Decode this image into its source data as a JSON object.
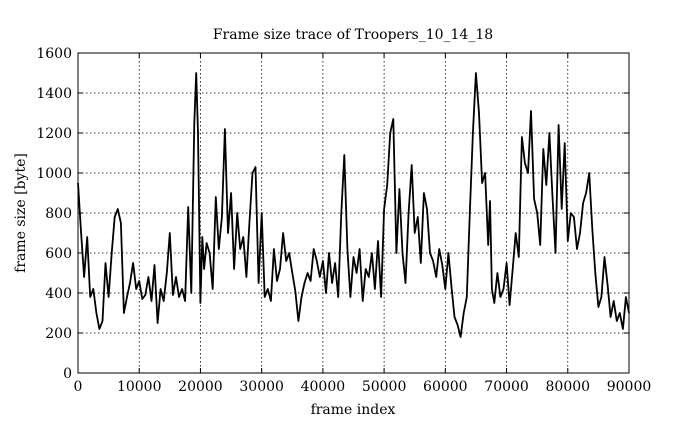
{
  "chart_data": {
    "type": "line",
    "title": "Frame size trace of Troopers_10_14_18",
    "xlabel": "frame index",
    "ylabel": "frame size [byte]",
    "xlim": [
      0,
      90000
    ],
    "ylim": [
      0,
      1600
    ],
    "x_ticks": [
      0,
      10000,
      20000,
      30000,
      40000,
      50000,
      60000,
      70000,
      80000,
      90000
    ],
    "y_ticks": [
      0,
      200,
      400,
      600,
      800,
      1000,
      1200,
      1400,
      1600
    ],
    "grid": true,
    "grid_style": "dotted",
    "line_color": "#000000",
    "series": [
      {
        "x": [
          0,
          500,
          1000,
          1500,
          2000,
          2500,
          3000,
          3500,
          4000,
          4500,
          5000,
          5500,
          6000,
          6500,
          7000,
          7500,
          8000,
          8500,
          9000,
          9500,
          10000,
          10500,
          11000,
          11500,
          12000,
          12500,
          13000,
          13500,
          14000,
          14500,
          15000,
          15500,
          16000,
          16500,
          17000,
          17500,
          18000,
          18500,
          19000,
          19300,
          19600,
          20000,
          20300,
          20600,
          21000,
          21500,
          22000,
          22500,
          23000,
          23500,
          24000,
          24500,
          25000,
          25500,
          26000,
          26500,
          27000,
          27500,
          28000,
          28500,
          29000,
          29500,
          30000,
          30500,
          31000,
          31500,
          32000,
          32500,
          33000,
          33500,
          34000,
          34500,
          35000,
          35500,
          36000,
          36500,
          37000,
          37500,
          38000,
          38500,
          39000,
          39500,
          40000,
          40500,
          41000,
          41500,
          42000,
          42500,
          43000,
          43500,
          44000,
          44500,
          45000,
          45500,
          46000,
          46500,
          47000,
          47500,
          48000,
          48500,
          49000,
          49500,
          50000,
          50500,
          51000,
          51500,
          52000,
          52500,
          53000,
          53500,
          54000,
          54500,
          55000,
          55500,
          56000,
          56500,
          57000,
          57500,
          58000,
          58500,
          59000,
          59500,
          60000,
          60500,
          61000,
          61500,
          62000,
          62500,
          63000,
          63500,
          64000,
          64500,
          65000,
          65500,
          66000,
          66500,
          67000,
          67300,
          67600,
          68000,
          68500,
          69000,
          69500,
          70000,
          70500,
          71000,
          71500,
          72000,
          72500,
          73000,
          73500,
          74000,
          74500,
          75000,
          75500,
          76000,
          76500,
          77000,
          77500,
          78000,
          78500,
          79000,
          79500,
          80000,
          80500,
          81000,
          81500,
          82000,
          82500,
          83000,
          83500,
          84000,
          84500,
          85000,
          85500,
          86000,
          86500,
          87000,
          87500,
          88000,
          88500,
          89000,
          89500,
          90000
        ],
        "values": [
          950,
          700,
          480,
          680,
          380,
          420,
          300,
          220,
          260,
          550,
          380,
          600,
          780,
          820,
          750,
          300,
          380,
          450,
          550,
          420,
          460,
          370,
          390,
          480,
          360,
          540,
          250,
          420,
          360,
          500,
          700,
          390,
          480,
          380,
          420,
          360,
          830,
          400,
          1250,
          1500,
          1200,
          350,
          680,
          520,
          650,
          600,
          420,
          880,
          620,
          780,
          1220,
          700,
          900,
          520,
          800,
          620,
          680,
          480,
          750,
          1000,
          1030,
          450,
          800,
          380,
          420,
          360,
          620,
          460,
          520,
          700,
          560,
          600,
          500,
          410,
          260,
          380,
          450,
          500,
          460,
          620,
          560,
          480,
          560,
          400,
          600,
          450,
          550,
          380,
          800,
          1090,
          620,
          380,
          580,
          500,
          620,
          360,
          520,
          480,
          600,
          420,
          660,
          380,
          820,
          940,
          1200,
          1270,
          600,
          920,
          600,
          450,
          800,
          1040,
          700,
          780,
          550,
          900,
          820,
          600,
          560,
          480,
          620,
          540,
          420,
          600,
          430,
          280,
          240,
          180,
          300,
          380,
          800,
          1200,
          1500,
          1300,
          950,
          1000,
          640,
          860,
          420,
          350,
          500,
          380,
          420,
          550,
          340,
          520,
          700,
          580,
          1180,
          1050,
          1000,
          1310,
          870,
          800,
          640,
          1120,
          940,
          1200,
          880,
          600,
          1240,
          820,
          1150,
          660,
          800,
          780,
          620,
          700,
          850,
          900,
          1000,
          720,
          500,
          330,
          380,
          580,
          440,
          280,
          360,
          260,
          300,
          220,
          380,
          300
        ]
      }
    ]
  }
}
